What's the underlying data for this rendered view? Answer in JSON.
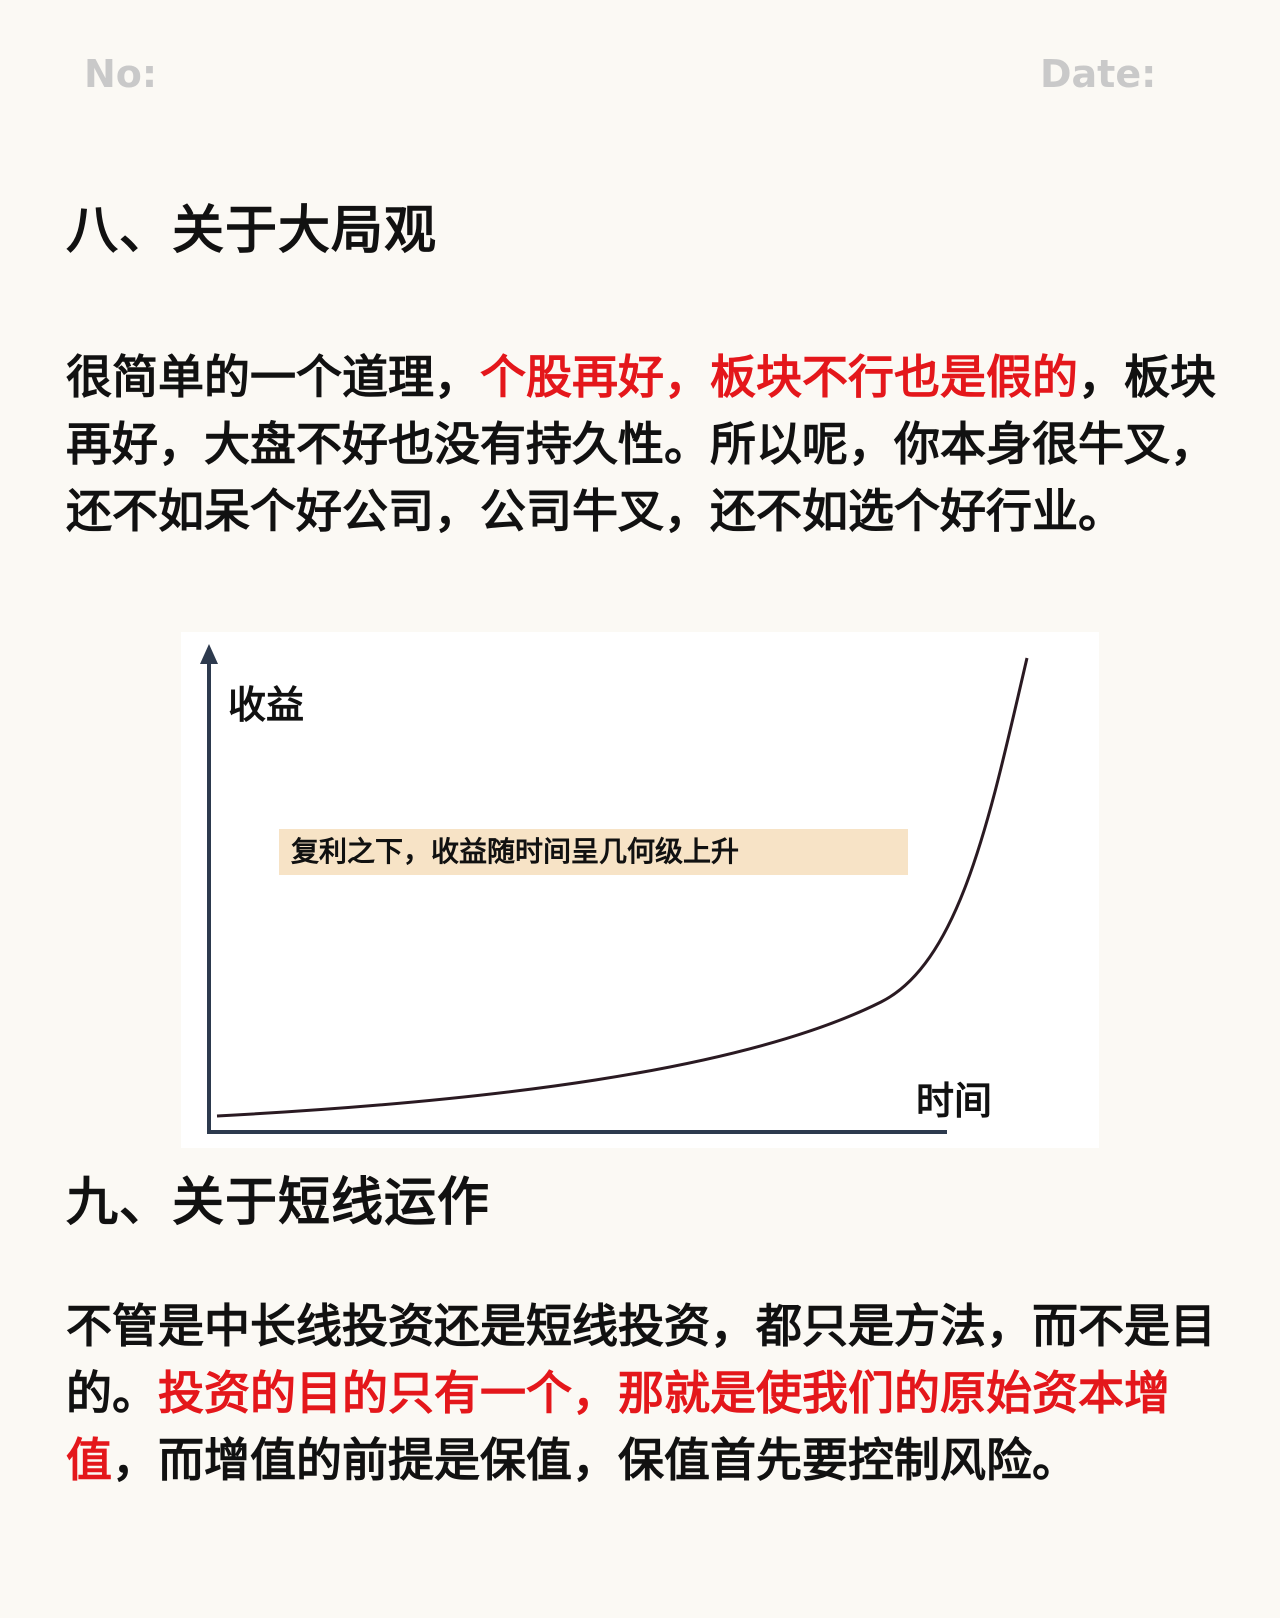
{
  "header": {
    "no_label": "No:",
    "date_label": "Date:"
  },
  "section8": {
    "title": "八、关于大局观",
    "p1a": "很简单的一个道理，",
    "p1b": "个股再好，板块不行也是假的",
    "p1c": "，板块再好，大盘不好也没有持久性。所以呢，你本身很牛叉，还不如呆个好公司，公司牛叉，还不如选个好行业。"
  },
  "diagram": {
    "y_label": "收益",
    "x_label": "时间",
    "note": "复利之下，收益随时间呈几何级上升",
    "axis_color": "#2d3a4e",
    "curve_color": "#2a1a22",
    "note_bg": "#f7e3c6"
  },
  "section9": {
    "title": "九、关于短线运作",
    "p2a": "不管是中长线投资还是短线投资，都只是方法，而不是目的。",
    "p2b": "投资的目的只有一个，那就是使我们的原始资本增值",
    "p2c": "，而增值的前提是保值，保值首先要控制风险。"
  },
  "colors": {
    "highlight": "#e4171b",
    "text": "#111111",
    "background": "#fbf9f4"
  }
}
